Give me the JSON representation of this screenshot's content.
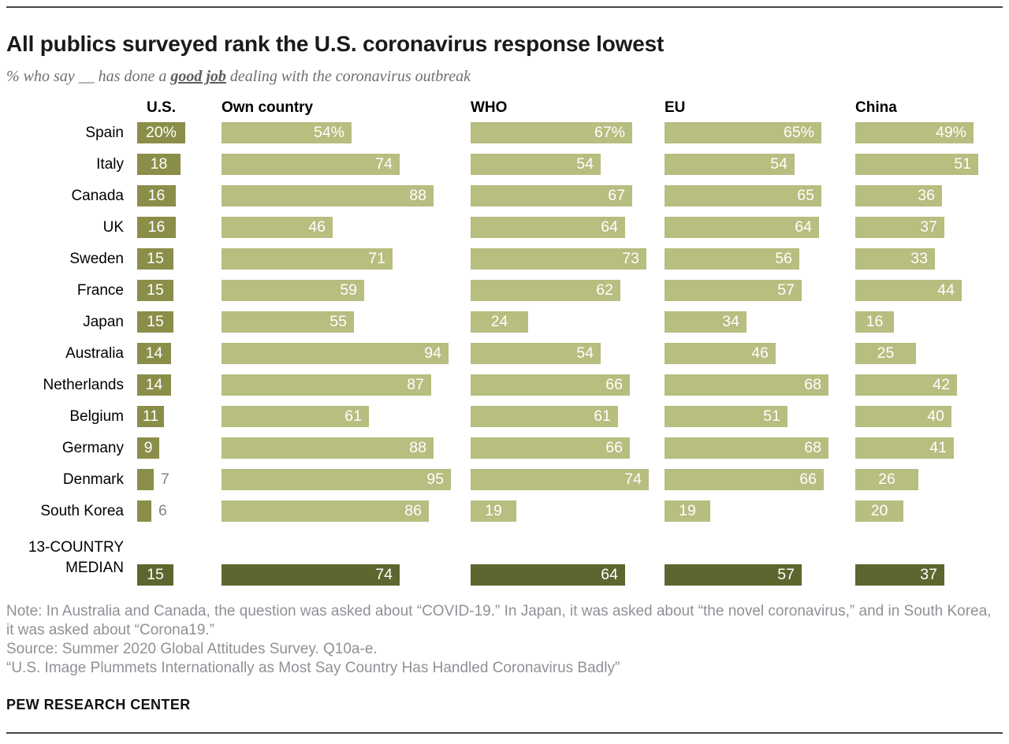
{
  "colors": {
    "us_bar": "#8a8e49",
    "bar": "#b8bd80",
    "median_bar": "#5e652e",
    "value_text": "#ffffff",
    "outside_value_text": "#818488",
    "note_text": "#8e9196",
    "title_text": "#1a1a1a",
    "subtitle_text": "#6e6e6e"
  },
  "chart_data": {
    "type": "bar",
    "orientation": "horizontal",
    "title": "All publics surveyed rank the U.S. coronavirus response lowest",
    "subtitle_parts": {
      "prefix": "% who say __ has done a ",
      "emphasis": "good job",
      "suffix": " dealing with the coronavirus outbreak"
    },
    "unit": "percent",
    "xlim": [
      0,
      100
    ],
    "grid": false,
    "legend_position": "none",
    "value_suffix_first_row": "%",
    "columns": [
      "U.S.",
      "Own country",
      "WHO",
      "EU",
      "China"
    ],
    "rows": [
      {
        "label": "Spain",
        "values": [
          20,
          54,
          67,
          65,
          49
        ]
      },
      {
        "label": "Italy",
        "values": [
          18,
          74,
          54,
          54,
          51
        ]
      },
      {
        "label": "Canada",
        "values": [
          16,
          88,
          67,
          65,
          36
        ]
      },
      {
        "label": "UK",
        "values": [
          16,
          46,
          64,
          64,
          37
        ]
      },
      {
        "label": "Sweden",
        "values": [
          15,
          71,
          73,
          56,
          33
        ]
      },
      {
        "label": "France",
        "values": [
          15,
          59,
          62,
          57,
          44
        ]
      },
      {
        "label": "Japan",
        "values": [
          15,
          55,
          24,
          34,
          16
        ]
      },
      {
        "label": "Australia",
        "values": [
          14,
          94,
          54,
          46,
          25
        ]
      },
      {
        "label": "Netherlands",
        "values": [
          14,
          87,
          66,
          68,
          42
        ]
      },
      {
        "label": "Belgium",
        "values": [
          11,
          61,
          61,
          51,
          40
        ]
      },
      {
        "label": "Germany",
        "values": [
          9,
          88,
          66,
          68,
          41
        ]
      },
      {
        "label": "Denmark",
        "values": [
          7,
          95,
          74,
          66,
          26
        ]
      },
      {
        "label": "South Korea",
        "values": [
          6,
          86,
          19,
          19,
          20
        ]
      },
      {
        "label": "13-COUNTRY MEDIAN",
        "values": [
          15,
          74,
          64,
          57,
          37
        ],
        "is_median": true
      }
    ]
  },
  "notes": {
    "note": "Note: In Australia and Canada, the question was asked about “COVID-19.” In Japan, it was asked about “the novel coronavirus,” and in South Korea, it was asked about “Corona19.”",
    "source": "Source: Summer 2020 Global Attitudes Survey. Q10a-e.",
    "report_title": "“U.S. Image Plummets Internationally as Most Say Country Has Handled Coronavirus Badly”"
  },
  "footer": {
    "brand": "PEW RESEARCH CENTER"
  }
}
